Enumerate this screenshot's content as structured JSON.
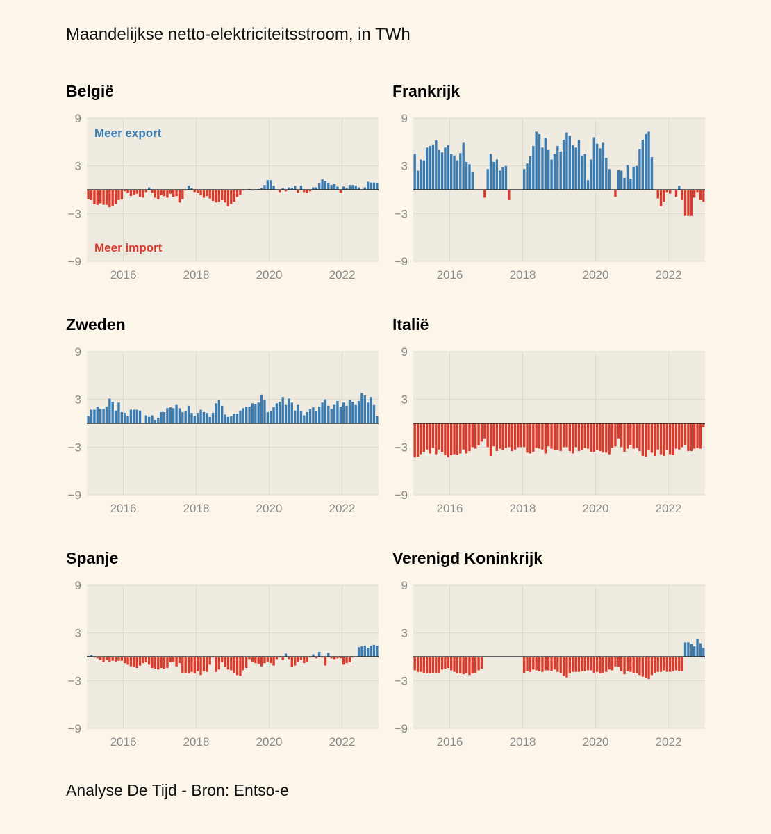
{
  "title": "Maandelijkse netto-elektriciteitsstroom, in TWh",
  "source": "Analyse De Tijd - Bron: Entso-e",
  "colors": {
    "export": "#3a7bb1",
    "import": "#d93a2b",
    "plot_bg": "#f0ebe1",
    "grid": "#dedad1",
    "zero": "#111111",
    "background": "#fcf6ea"
  },
  "chart_data": [
    {
      "type": "bar",
      "title": "België",
      "x_start": "2015-01",
      "x_end": "2022-12",
      "ylim": [
        -9,
        9
      ],
      "yticks": [
        "9",
        "3",
        "−3",
        "−9"
      ],
      "xticks": [
        "2016",
        "2018",
        "2020",
        "2022"
      ],
      "grid": true,
      "annotations": [
        {
          "text": "Meer export",
          "color": "#3a7bb1",
          "position": "top-left"
        },
        {
          "text": "Meer import",
          "color": "#d93a2b",
          "position": "bottom-left"
        }
      ],
      "values": [
        -1.2,
        -1.3,
        -1.8,
        -1.9,
        -1.7,
        -1.9,
        -1.9,
        -2.2,
        -2.0,
        -1.8,
        -1.3,
        -1.2,
        -0.2,
        -0.4,
        -0.8,
        -0.6,
        -0.5,
        -0.9,
        -1.0,
        -0.3,
        0.3,
        -0.4,
        -1.0,
        -1.2,
        -0.7,
        -0.8,
        -1.0,
        -0.5,
        -0.9,
        -0.8,
        -1.6,
        -1.2,
        -0.1,
        0.5,
        0.2,
        -0.3,
        -0.4,
        -0.7,
        -1.0,
        -0.8,
        -1.1,
        -1.4,
        -1.6,
        -1.5,
        -1.3,
        -1.6,
        -2.1,
        -1.8,
        -1.5,
        -0.9,
        -0.6,
        -0.1,
        0.0,
        0.1,
        -0.1,
        0.0,
        0.1,
        0.2,
        0.6,
        1.2,
        1.2,
        0.5,
        0.0,
        -0.3,
        0.2,
        -0.2,
        0.3,
        0.2,
        0.5,
        -0.4,
        0.5,
        -0.3,
        -0.4,
        -0.2,
        0.3,
        0.3,
        0.8,
        1.3,
        1.1,
        0.8,
        0.6,
        0.7,
        0.4,
        -0.4,
        0.4,
        0.2,
        0.6,
        0.6,
        0.5,
        0.3,
        0.0,
        0.3,
        1.0,
        0.9,
        0.9,
        0.8
      ]
    },
    {
      "type": "bar",
      "title": "Frankrijk",
      "x_start": "2015-01",
      "x_end": "2022-12",
      "ylim": [
        -9,
        9
      ],
      "yticks": [
        "9",
        "3",
        "−3",
        "−9"
      ],
      "xticks": [
        "2016",
        "2018",
        "2020",
        "2022"
      ],
      "grid": true,
      "values": [
        4.5,
        2.4,
        3.8,
        3.7,
        5.3,
        5.5,
        5.7,
        6.2,
        5.0,
        4.7,
        5.3,
        5.6,
        4.5,
        4.3,
        3.7,
        4.6,
        5.9,
        3.5,
        3.2,
        2.2,
        0.0,
        0.0,
        0.0,
        -1.0,
        2.6,
        4.5,
        3.5,
        3.8,
        2.4,
        2.8,
        3.0,
        -1.3,
        0.0,
        0.0,
        0.0,
        0.0,
        2.6,
        3.3,
        4.2,
        5.5,
        7.3,
        7.0,
        5.3,
        6.5,
        5.0,
        3.8,
        4.5,
        5.5,
        4.8,
        6.3,
        7.2,
        6.8,
        5.6,
        5.3,
        6.2,
        4.3,
        4.5,
        1.2,
        3.8,
        6.6,
        5.8,
        5.2,
        5.9,
        4.0,
        2.6,
        0.0,
        -0.9,
        2.5,
        2.4,
        1.5,
        3.1,
        1.4,
        2.9,
        3.0,
        5.1,
        6.3,
        7.0,
        7.3,
        4.1,
        0.0,
        -1.1,
        -2.1,
        -1.5,
        -0.3,
        -0.5,
        0.0,
        -0.9,
        0.5,
        -1.3,
        -3.3,
        -3.3,
        -3.3,
        -1.0,
        -0.3,
        -1.3,
        -1.5
      ]
    },
    {
      "type": "bar",
      "title": "Zweden",
      "x_start": "2015-01",
      "x_end": "2022-12",
      "ylim": [
        -9,
        9
      ],
      "yticks": [
        "9",
        "3",
        "−3",
        "−9"
      ],
      "xticks": [
        "2016",
        "2018",
        "2020",
        "2022"
      ],
      "grid": true,
      "values": [
        0.9,
        1.7,
        1.7,
        2.1,
        1.8,
        1.8,
        2.1,
        3.1,
        2.7,
        1.6,
        2.6,
        1.4,
        1.3,
        0.9,
        1.7,
        1.7,
        1.7,
        1.6,
        0.0,
        1.0,
        0.8,
        1.0,
        0.4,
        0.7,
        1.4,
        1.4,
        1.9,
        2.0,
        1.9,
        2.3,
        1.9,
        1.4,
        1.5,
        2.2,
        1.3,
        0.9,
        1.3,
        1.7,
        1.4,
        1.3,
        0.8,
        1.3,
        2.5,
        2.9,
        2.2,
        1.1,
        0.8,
        0.9,
        1.2,
        1.2,
        1.6,
        1.9,
        2.1,
        2.1,
        2.5,
        2.4,
        2.6,
        3.6,
        2.9,
        1.4,
        1.5,
        2.0,
        2.5,
        2.7,
        3.3,
        2.3,
        3.1,
        2.6,
        1.6,
        2.3,
        1.5,
        1.0,
        1.4,
        1.8,
        2.0,
        1.5,
        2.1,
        2.6,
        3.0,
        2.2,
        1.8,
        2.3,
        2.8,
        2.1,
        2.6,
        2.2,
        2.9,
        2.7,
        2.3,
        2.8,
        3.8,
        3.5,
        2.6,
        3.3,
        2.3,
        0.9
      ]
    },
    {
      "type": "bar",
      "title": "Italië",
      "x_start": "2015-01",
      "x_end": "2022-12",
      "ylim": [
        -9,
        9
      ],
      "yticks": [
        "9",
        "3",
        "−3",
        "−9"
      ],
      "xticks": [
        "2016",
        "2018",
        "2020",
        "2022"
      ],
      "grid": true,
      "values": [
        -4.3,
        -4.2,
        -3.9,
        -3.6,
        -3.3,
        -3.8,
        -3.1,
        -3.9,
        -3.3,
        -3.6,
        -4.0,
        -4.3,
        -4.0,
        -3.9,
        -4.0,
        -3.8,
        -3.3,
        -3.8,
        -3.5,
        -3.0,
        -3.2,
        -2.8,
        -2.3,
        -1.9,
        -3.0,
        -4.1,
        -2.9,
        -3.5,
        -3.2,
        -3.4,
        -3.1,
        -3.0,
        -3.5,
        -3.3,
        -3.0,
        -3.0,
        -3.0,
        -3.7,
        -3.8,
        -3.6,
        -3.1,
        -3.2,
        -3.3,
        -3.8,
        -2.9,
        -3.2,
        -3.4,
        -3.4,
        -3.5,
        -3.0,
        -3.0,
        -3.5,
        -3.8,
        -3.0,
        -3.5,
        -3.4,
        -3.1,
        -3.2,
        -3.6,
        -3.6,
        -3.4,
        -3.5,
        -3.7,
        -3.7,
        -3.9,
        -3.1,
        -2.9,
        -1.9,
        -3.0,
        -3.6,
        -3.2,
        -2.7,
        -3.2,
        -3.1,
        -3.5,
        -4.1,
        -4.2,
        -3.4,
        -3.7,
        -4.1,
        -3.3,
        -3.9,
        -4.1,
        -3.4,
        -3.9,
        -4.0,
        -3.2,
        -3.3,
        -3.0,
        -2.7,
        -3.5,
        -3.5,
        -3.2,
        -3.1,
        -3.2,
        -0.5
      ]
    },
    {
      "type": "bar",
      "title": "Spanje",
      "x_start": "2015-01",
      "x_end": "2022-12",
      "ylim": [
        -9,
        9
      ],
      "yticks": [
        "9",
        "3",
        "−3",
        "−9"
      ],
      "xticks": [
        "2016",
        "2018",
        "2020",
        "2022"
      ],
      "grid": true,
      "values": [
        0.1,
        0.2,
        -0.1,
        -0.2,
        -0.4,
        -0.7,
        -0.4,
        -0.6,
        -0.5,
        -0.6,
        -0.5,
        -0.5,
        -0.8,
        -1.0,
        -1.2,
        -1.3,
        -1.4,
        -1.1,
        -0.8,
        -0.7,
        -1.0,
        -1.4,
        -1.5,
        -1.6,
        -1.4,
        -1.5,
        -1.4,
        -0.7,
        -0.6,
        -1.2,
        -0.8,
        -2.0,
        -2.0,
        -2.1,
        -1.9,
        -2.1,
        -1.8,
        -2.3,
        -1.8,
        -1.9,
        -1.0,
        -0.1,
        -1.9,
        -1.6,
        -0.7,
        -1.3,
        -1.6,
        -1.7,
        -2.0,
        -2.3,
        -2.4,
        -1.7,
        -1.4,
        -0.3,
        -0.6,
        -0.8,
        -0.9,
        -1.2,
        -0.8,
        -0.6,
        -0.8,
        -1.1,
        -0.3,
        -0.1,
        -0.4,
        0.4,
        -0.3,
        -1.3,
        -1.1,
        -0.6,
        -0.4,
        -0.8,
        -0.6,
        -0.1,
        0.3,
        -0.2,
        0.6,
        -0.1,
        -1.1,
        0.5,
        -0.2,
        -0.3,
        -0.2,
        -0.2,
        -1.0,
        -0.8,
        -0.7,
        -0.1,
        0.0,
        1.2,
        1.3,
        1.4,
        1.1,
        1.4,
        1.5,
        1.4
      ]
    },
    {
      "type": "bar",
      "title": "Verenigd Koninkrijk",
      "x_start": "2015-01",
      "x_end": "2022-12",
      "ylim": [
        -9,
        9
      ],
      "yticks": [
        "9",
        "3",
        "−3",
        "−9"
      ],
      "xticks": [
        "2016",
        "2018",
        "2020",
        "2022"
      ],
      "grid": true,
      "values": [
        -1.7,
        -1.9,
        -1.9,
        -2.0,
        -2.1,
        -2.1,
        -2.0,
        -2.0,
        -2.0,
        -1.6,
        -1.5,
        -1.4,
        -1.7,
        -1.9,
        -2.1,
        -2.1,
        -2.2,
        -2.1,
        -2.3,
        -2.1,
        -2.0,
        -1.7,
        -1.5,
        0.0,
        0.0,
        0.0,
        0.0,
        0.0,
        0.0,
        0.0,
        0.0,
        0.0,
        0.0,
        0.0,
        0.0,
        0.0,
        -2.0,
        -1.8,
        -1.9,
        -1.6,
        -1.7,
        -1.8,
        -1.9,
        -1.7,
        -1.7,
        -1.8,
        -1.6,
        -1.9,
        -2.0,
        -2.4,
        -2.6,
        -2.1,
        -1.9,
        -1.9,
        -1.9,
        -1.8,
        -1.8,
        -1.7,
        -1.7,
        -2.0,
        -1.9,
        -2.1,
        -2.0,
        -1.9,
        -1.6,
        -1.7,
        -1.2,
        -1.3,
        -1.8,
        -2.2,
        -1.8,
        -1.9,
        -2.0,
        -2.1,
        -2.3,
        -2.5,
        -2.7,
        -2.8,
        -2.3,
        -2.0,
        -1.9,
        -1.9,
        -1.7,
        -1.9,
        -1.9,
        -1.8,
        -1.7,
        -1.8,
        -1.8,
        1.8,
        1.8,
        1.6,
        1.3,
        2.2,
        1.7,
        1.1
      ]
    }
  ]
}
